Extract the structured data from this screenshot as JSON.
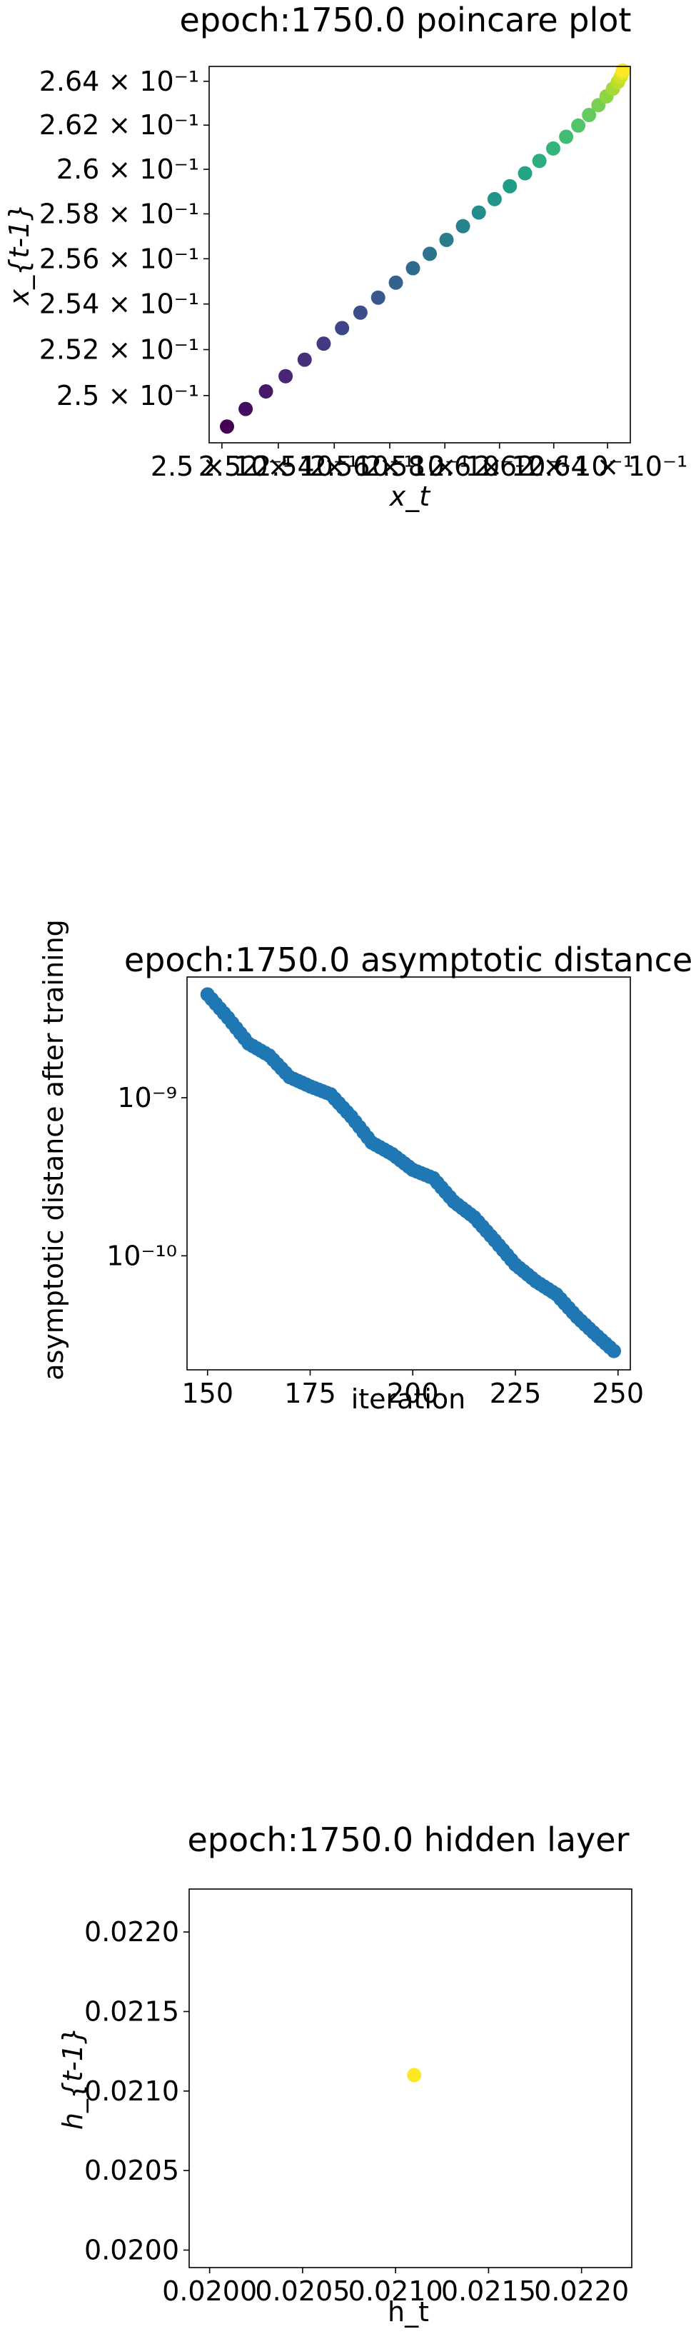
{
  "chart_data": [
    {
      "type": "scatter",
      "title": "epoch:1750.0 poincare plot",
      "xlabel": "x_t",
      "ylabel": "x_{t-1}",
      "xscale": "log",
      "yscale": "log",
      "xlim": [
        0.24955,
        0.26485
      ],
      "ylim": [
        0.24796,
        0.26468
      ],
      "grid": false,
      "colormap": "viridis",
      "color_range": [
        "#440154",
        "#fde725"
      ],
      "xticks": [
        {
          "value": 0.25,
          "label": "2.5 × 10⁻¹"
        },
        {
          "value": 0.252,
          "label": "2.52 × 10⁻¹"
        },
        {
          "value": 0.254,
          "label": "2.54 × 10⁻¹"
        },
        {
          "value": 0.256,
          "label": "2.56 × 10⁻¹"
        },
        {
          "value": 0.258,
          "label": "2.58 × 10⁻¹"
        },
        {
          "value": 0.26,
          "label": "2.6 × 10⁻¹"
        },
        {
          "value": 0.262,
          "label": "2.62 × 10⁻¹"
        },
        {
          "value": 0.264,
          "label": "2.64 × 10⁻¹"
        }
      ],
      "yticks": [
        {
          "value": 0.25,
          "label": "2.5 × 10⁻¹"
        },
        {
          "value": 0.252,
          "label": "2.52 × 10⁻¹"
        },
        {
          "value": 0.254,
          "label": "2.54 × 10⁻¹"
        },
        {
          "value": 0.256,
          "label": "2.56 × 10⁻¹"
        },
        {
          "value": 0.258,
          "label": "2.58 × 10⁻¹"
        },
        {
          "value": 0.26,
          "label": "2.6 × 10⁻¹"
        },
        {
          "value": 0.262,
          "label": "2.62 × 10⁻¹"
        },
        {
          "value": 0.264,
          "label": "2.64 × 10⁻¹"
        }
      ],
      "points": [
        [
          0.25018,
          0.24866
        ],
        [
          0.25084,
          0.24942
        ],
        [
          0.25156,
          0.25018
        ],
        [
          0.25226,
          0.25084
        ],
        [
          0.25294,
          0.25156
        ],
        [
          0.25362,
          0.25226
        ],
        [
          0.25428,
          0.25294
        ],
        [
          0.25494,
          0.25362
        ],
        [
          0.25558,
          0.25428
        ],
        [
          0.25622,
          0.25494
        ],
        [
          0.25684,
          0.25558
        ],
        [
          0.25745,
          0.25622
        ],
        [
          0.25806,
          0.25684
        ],
        [
          0.25866,
          0.25745
        ],
        [
          0.25924,
          0.25806
        ],
        [
          0.25982,
          0.25866
        ],
        [
          0.26038,
          0.25924
        ],
        [
          0.26094,
          0.25982
        ],
        [
          0.26147,
          0.26038
        ],
        [
          0.26198,
          0.26094
        ],
        [
          0.26246,
          0.26147
        ],
        [
          0.26291,
          0.26198
        ],
        [
          0.26331,
          0.26246
        ],
        [
          0.26366,
          0.26291
        ],
        [
          0.26396,
          0.26331
        ],
        [
          0.2642,
          0.26366
        ],
        [
          0.26438,
          0.26396
        ],
        [
          0.26449,
          0.2642
        ],
        [
          0.26455,
          0.26438
        ],
        [
          0.26457,
          0.26449
        ]
      ]
    },
    {
      "type": "scatter",
      "title": "epoch:1750.0 asymptotic distance",
      "xlabel": "iteration",
      "ylabel": "asymptotic distance after training",
      "yscale": "log",
      "xlim": [
        145,
        253
      ],
      "ylim": [
        1.9e-11,
        5.8e-09
      ],
      "grid": false,
      "color": "#1f77b4",
      "xticks": [
        {
          "value": 150,
          "label": "150"
        },
        {
          "value": 175,
          "label": "175"
        },
        {
          "value": 200,
          "label": "200"
        },
        {
          "value": 225,
          "label": "225"
        },
        {
          "value": 250,
          "label": "250"
        }
      ],
      "yticks": [
        {
          "value": 1e-09,
          "label": "10⁻⁹"
        },
        {
          "value": 1e-10,
          "label": "10⁻¹⁰"
        }
      ],
      "x_range": [
        150,
        249
      ],
      "anchors": [
        [
          150,
          4.5e-09
        ],
        [
          155,
          3.2e-09
        ],
        [
          160,
          2.2e-09
        ],
        [
          165,
          1.85e-09
        ],
        [
          170,
          1.35e-09
        ],
        [
          175,
          1.18e-09
        ],
        [
          180,
          1.05e-09
        ],
        [
          185,
          7.6e-10
        ],
        [
          190,
          5.2e-10
        ],
        [
          195,
          4.4e-10
        ],
        [
          200,
          3.5e-10
        ],
        [
          205,
          3.1e-10
        ],
        [
          210,
          2.2e-10
        ],
        [
          215,
          1.75e-10
        ],
        [
          220,
          1.25e-10
        ],
        [
          225,
          8.8e-11
        ],
        [
          230,
          6.9e-11
        ],
        [
          235,
          5.7e-11
        ],
        [
          240,
          4.1e-11
        ],
        [
          245,
          3.1e-11
        ],
        [
          249,
          2.5e-11
        ]
      ]
    },
    {
      "type": "scatter",
      "title": "epoch:1750.0 hidden layer",
      "xlabel": "h_t",
      "ylabel": "h_{t-1}",
      "xlim": [
        0.01989,
        0.02227
      ],
      "ylim": [
        0.01989,
        0.02227
      ],
      "grid": false,
      "xticks": [
        {
          "value": 0.02,
          "label": "0.0200"
        },
        {
          "value": 0.0205,
          "label": "0.0205"
        },
        {
          "value": 0.021,
          "label": "0.0210"
        },
        {
          "value": 0.0215,
          "label": "0.0215"
        },
        {
          "value": 0.022,
          "label": "0.0220"
        }
      ],
      "yticks": [
        {
          "value": 0.02,
          "label": "0.0200"
        },
        {
          "value": 0.0205,
          "label": "0.0205"
        },
        {
          "value": 0.021,
          "label": "0.0210"
        },
        {
          "value": 0.0215,
          "label": "0.0215"
        },
        {
          "value": 0.022,
          "label": "0.0220"
        }
      ],
      "points": [
        [
          0.0211,
          0.0211
        ]
      ],
      "color": "#fde725"
    }
  ]
}
